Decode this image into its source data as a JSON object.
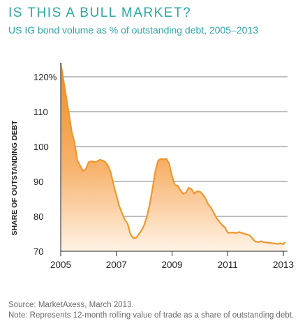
{
  "header": {
    "title": "IS THIS A BULL MARKET?",
    "subtitle": "US IG bond volume as % of outstanding debt, 2005–2013"
  },
  "footer": {
    "source": "Source: MarketAxess, March 2013.",
    "note": "Note: Represents 12-month rolling value of trade as a share of outstanding debt."
  },
  "colors": {
    "accent": "#2aa7a3",
    "line": "#f0962e",
    "fill_top": "#f08a24",
    "fill_bottom": "#fff3e6",
    "grid": "#555555",
    "text": "#222222"
  },
  "chart_data": {
    "type": "area",
    "title": "IS THIS A BULL MARKET?",
    "subtitle": "US IG bond volume as % of outstanding debt, 2005–2013",
    "xlabel": "",
    "ylabel": "SHARE OF OUTSTANDING DEBT",
    "xlim": [
      2005,
      2013.15
    ],
    "ylim": [
      70,
      124
    ],
    "x_ticks": [
      2005,
      2007,
      2009,
      2011,
      2013
    ],
    "x_tick_labels": [
      "2005",
      "2007",
      "2009",
      "2011",
      "2013"
    ],
    "y_ticks": [
      70,
      80,
      90,
      100,
      110,
      120
    ],
    "y_tick_labels": [
      "70",
      "80",
      "90",
      "100",
      "110",
      "120%"
    ],
    "grid": "horizontal",
    "x": [
      2005.0,
      2005.1,
      2005.2,
      2005.3,
      2005.4,
      2005.5,
      2005.6,
      2005.7,
      2005.8,
      2005.9,
      2006.0,
      2006.1,
      2006.2,
      2006.3,
      2006.4,
      2006.5,
      2006.6,
      2006.7,
      2006.8,
      2006.9,
      2007.0,
      2007.1,
      2007.2,
      2007.3,
      2007.4,
      2007.5,
      2007.6,
      2007.7,
      2007.8,
      2007.9,
      2008.0,
      2008.1,
      2008.2,
      2008.3,
      2008.4,
      2008.5,
      2008.6,
      2008.7,
      2008.8,
      2008.9,
      2009.0,
      2009.1,
      2009.2,
      2009.3,
      2009.4,
      2009.5,
      2009.6,
      2009.7,
      2009.8,
      2009.9,
      2010.0,
      2010.1,
      2010.2,
      2010.3,
      2010.4,
      2010.5,
      2010.6,
      2010.7,
      2010.8,
      2010.9,
      2011.0,
      2011.1,
      2011.2,
      2011.3,
      2011.4,
      2011.5,
      2011.6,
      2011.7,
      2011.8,
      2011.9,
      2012.0,
      2012.1,
      2012.2,
      2012.3,
      2012.4,
      2012.5,
      2012.6,
      2012.7,
      2012.8,
      2012.9,
      2013.0,
      2013.05
    ],
    "series": [
      {
        "values": [
          124,
          119,
          114,
          109,
          104,
          101,
          96,
          94.5,
          93,
          93.5,
          95.5,
          95.8,
          95.6,
          95.7,
          96.2,
          96.0,
          95.6,
          94.5,
          92.5,
          89,
          86,
          83,
          81,
          79,
          78,
          75,
          73.8,
          73.8,
          74.8,
          76,
          77.5,
          80,
          83.5,
          88,
          93,
          96,
          96.5,
          96.3,
          96.5,
          95,
          91.5,
          89,
          88.8,
          87.5,
          86.5,
          86.8,
          88.2,
          87.8,
          86.5,
          87.2,
          87.1,
          86.3,
          85.1,
          83.5,
          82.5,
          81,
          79.5,
          78.5,
          77.5,
          76.8,
          75.3,
          75.3,
          75.4,
          75.2,
          75.5,
          75.3,
          75.0,
          74.8,
          74.5,
          73.5,
          72.8,
          72.6,
          72.9,
          72.6,
          72.5,
          72.4,
          72.3,
          72.2,
          72.1,
          72.3,
          72.0,
          72.6
        ]
      }
    ]
  }
}
